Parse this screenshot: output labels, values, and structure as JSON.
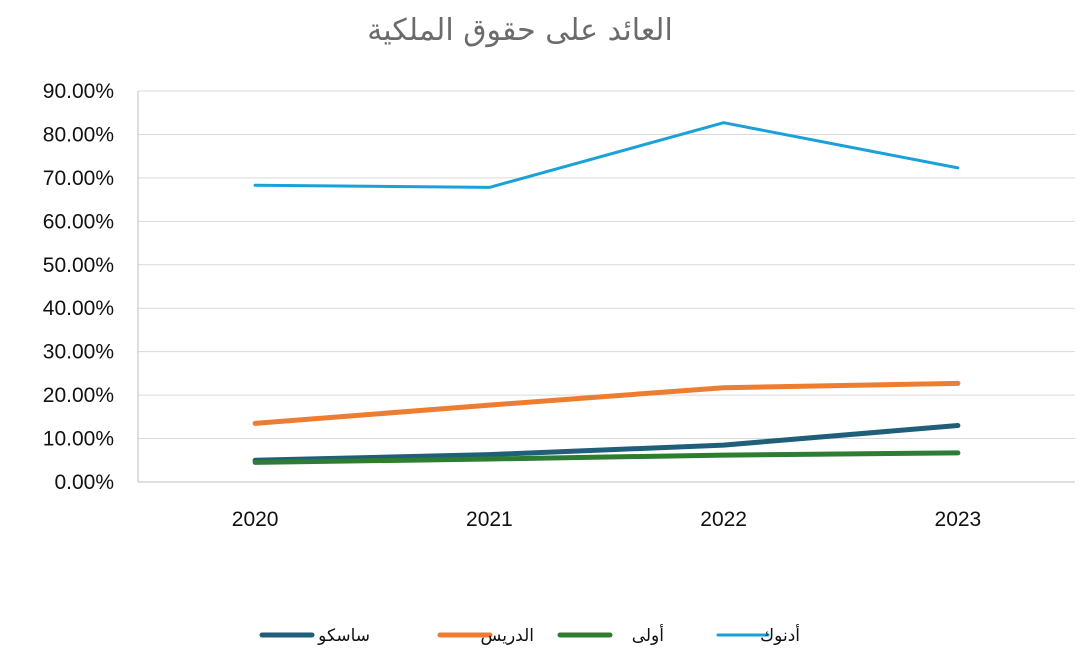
{
  "chart_data": {
    "type": "line",
    "title": "العائد على حقوق الملكية",
    "xlabel": "",
    "ylabel": "",
    "categories": [
      "2020",
      "2021",
      "2022",
      "2023"
    ],
    "ylim": [
      0,
      0.9
    ],
    "y_ticks": [
      "0.00%",
      "10.00%",
      "20.00%",
      "30.00%",
      "40.00%",
      "50.00%",
      "60.00%",
      "70.00%",
      "80.00%",
      "90.00%"
    ],
    "grid": true,
    "legend_position": "bottom",
    "series": [
      {
        "name": "ساسكو",
        "color": "#1f5f7a",
        "values": [
          0.05,
          0.063,
          0.085,
          0.13
        ]
      },
      {
        "name": "الدريس",
        "color": "#ed7d31",
        "values": [
          0.135,
          0.177,
          0.217,
          0.227
        ]
      },
      {
        "name": "أولى",
        "color": "#2e7d32",
        "values": [
          0.045,
          0.053,
          0.062,
          0.067
        ]
      },
      {
        "name": "أدنوك",
        "color": "#1ba1d8",
        "values": [
          0.683,
          0.678,
          0.827,
          0.723
        ]
      }
    ]
  }
}
